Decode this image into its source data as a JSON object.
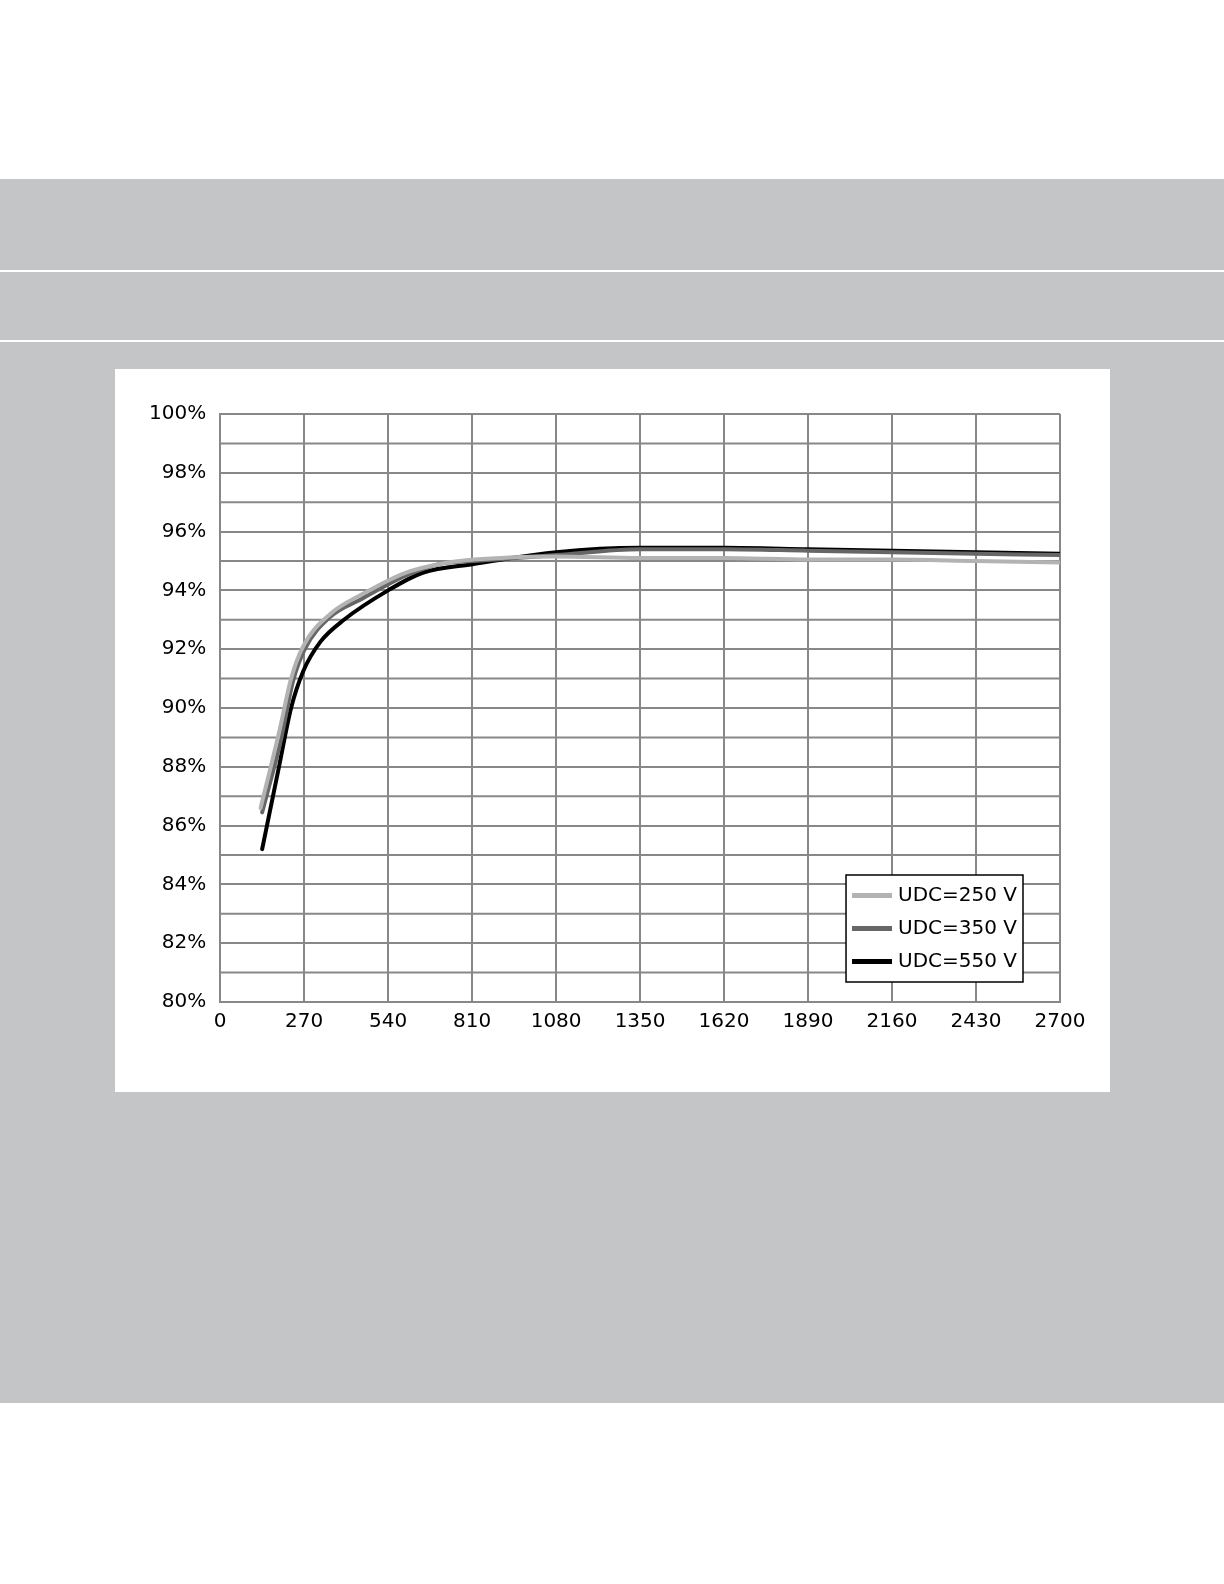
{
  "chart_data": {
    "type": "line",
    "series": [
      {
        "name": "UDC=250 V",
        "color": "#b3b3b3",
        "x": [
          130,
          190,
          228,
          267,
          354,
          453,
          596,
          706,
          815,
          1080,
          1350,
          1620,
          1890,
          2160,
          2430,
          2700
        ],
        "values": [
          86.6,
          89.2,
          91.0,
          92.1,
          93.2,
          93.85,
          94.6,
          94.9,
          95.05,
          95.15,
          95.1,
          95.1,
          95.05,
          95.05,
          95.0,
          94.95
        ]
      },
      {
        "name": "UDC=350 V",
        "color": "#666666",
        "x": [
          135,
          195,
          234,
          272,
          354,
          453,
          596,
          706,
          815,
          1080,
          1350,
          1620,
          1890,
          2160,
          2430,
          2700
        ],
        "values": [
          86.45,
          88.9,
          90.9,
          92.0,
          93.1,
          93.7,
          94.5,
          94.9,
          95.0,
          95.2,
          95.4,
          95.4,
          95.35,
          95.3,
          95.25,
          95.2
        ]
      },
      {
        "name": "UDC=550 V",
        "color": "#000000",
        "x": [
          135,
          190,
          228,
          267,
          322,
          398,
          540,
          651,
          815,
          1080,
          1350,
          1620,
          1890,
          2160,
          2430,
          2700
        ],
        "values": [
          85.2,
          88.05,
          90.0,
          91.25,
          92.25,
          93.0,
          94.0,
          94.6,
          94.9,
          95.3,
          95.45,
          95.45,
          95.4,
          95.35,
          95.3,
          95.25
        ]
      }
    ],
    "xlim": [
      0,
      2700
    ],
    "xticks": [
      0,
      270,
      540,
      810,
      1080,
      1350,
      1620,
      1890,
      2160,
      2430,
      2700
    ],
    "ylim": [
      80,
      100
    ],
    "yticks": [
      {
        "value": 80,
        "label": "80%"
      },
      {
        "value": 82,
        "label": "82%"
      },
      {
        "value": 84,
        "label": "84%"
      },
      {
        "value": 86,
        "label": "86%"
      },
      {
        "value": 88,
        "label": "88%"
      },
      {
        "value": 90,
        "label": "90%"
      },
      {
        "value": 92,
        "label": "92%"
      },
      {
        "value": 94,
        "label": "94%"
      },
      {
        "value": 96,
        "label": "96%"
      },
      {
        "value": 98,
        "label": "98%"
      },
      {
        "value": 100,
        "label": "100%"
      }
    ],
    "grid": true,
    "legend": "bottom right",
    "marker": "none",
    "line_style": "solid"
  }
}
